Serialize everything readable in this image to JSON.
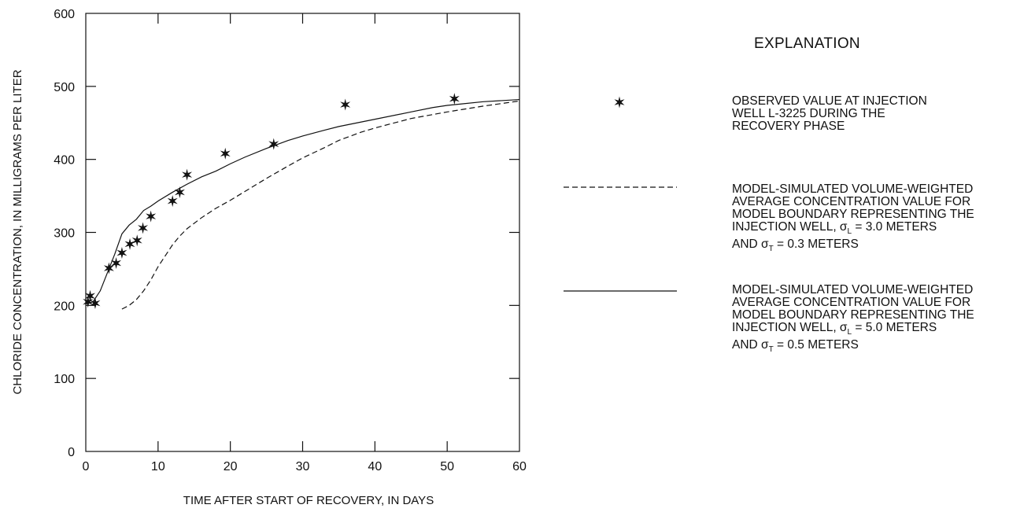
{
  "chart_data": {
    "type": "line",
    "xlabel": "TIME AFTER START OF RECOVERY, IN DAYS",
    "ylabel": "CHLORIDE CONCENTRATION, IN MILLIGRAMS PER LITER",
    "xlim": [
      0,
      60
    ],
    "ylim": [
      0,
      600
    ],
    "x_ticks": [
      "0",
      "10",
      "20",
      "30",
      "40",
      "50",
      "60"
    ],
    "y_ticks": [
      "0",
      "100",
      "200",
      "300",
      "400",
      "500",
      "600"
    ],
    "grid": false,
    "legend_position": "right",
    "legend_title": "EXPLANATION",
    "series": [
      {
        "key": "observed",
        "style": "star-markers",
        "legend_lines": [
          "OBSERVED VALUE AT INJECTION",
          "WELL L-3225 DURING THE",
          "RECOVERY PHASE"
        ],
        "points": [
          [
            0.3,
            205
          ],
          [
            0.6,
            213
          ],
          [
            1.3,
            203
          ],
          [
            3.2,
            251
          ],
          [
            4.2,
            258
          ],
          [
            5.0,
            272
          ],
          [
            6.1,
            284
          ],
          [
            7.1,
            289
          ],
          [
            7.9,
            306
          ],
          [
            9.0,
            322
          ],
          [
            12.0,
            343
          ],
          [
            13.0,
            355
          ],
          [
            14.0,
            379
          ],
          [
            19.3,
            408
          ],
          [
            26.0,
            421
          ],
          [
            35.9,
            475
          ],
          [
            51.0,
            483
          ]
        ]
      },
      {
        "key": "dashed",
        "style": "dashed",
        "legend_lines": [
          "MODEL-SIMULATED VOLUME-WEIGHTED",
          "AVERAGE CONCENTRATION VALUE FOR",
          "MODEL BOUNDARY REPRESENTING THE",
          "INJECTION WELL, σ<sub>L</sub> = 3.0 METERS",
          "AND σ<sub>T</sub> = 0.3 METERS"
        ],
        "points": [
          [
            5,
            195
          ],
          [
            6,
            200
          ],
          [
            7,
            208
          ],
          [
            8,
            220
          ],
          [
            9,
            235
          ],
          [
            10,
            253
          ],
          [
            11,
            268
          ],
          [
            12,
            283
          ],
          [
            13,
            295
          ],
          [
            14,
            305
          ],
          [
            16,
            320
          ],
          [
            18,
            333
          ],
          [
            20,
            344
          ],
          [
            22,
            356
          ],
          [
            25,
            374
          ],
          [
            28,
            391
          ],
          [
            30,
            402
          ],
          [
            33,
            416
          ],
          [
            35,
            426
          ],
          [
            38,
            437
          ],
          [
            40,
            443
          ],
          [
            45,
            456
          ],
          [
            50,
            465
          ],
          [
            55,
            473
          ],
          [
            60,
            480
          ]
        ]
      },
      {
        "key": "solid",
        "style": "solid",
        "legend_lines": [
          "MODEL-SIMULATED VOLUME-WEIGHTED",
          "AVERAGE CONCENTRATION VALUE FOR",
          "MODEL BOUNDARY REPRESENTING THE",
          "INJECTION WELL, σ<sub>L</sub> = 5.0 METERS",
          "AND σ<sub>T</sub> = 0.5 METERS"
        ],
        "points": [
          [
            0,
            202
          ],
          [
            1,
            205
          ],
          [
            2,
            220
          ],
          [
            3,
            245
          ],
          [
            4,
            270
          ],
          [
            5,
            298
          ],
          [
            6,
            310
          ],
          [
            7,
            318
          ],
          [
            8,
            330
          ],
          [
            9,
            336
          ],
          [
            10,
            343
          ],
          [
            12,
            355
          ],
          [
            14,
            366
          ],
          [
            16,
            376
          ],
          [
            18,
            384
          ],
          [
            20,
            394
          ],
          [
            22,
            403
          ],
          [
            25,
            415
          ],
          [
            28,
            426
          ],
          [
            30,
            432
          ],
          [
            33,
            440
          ],
          [
            35,
            445
          ],
          [
            40,
            455
          ],
          [
            45,
            465
          ],
          [
            48,
            471
          ],
          [
            50,
            474
          ],
          [
            52,
            476
          ],
          [
            55,
            479
          ],
          [
            60,
            482
          ]
        ]
      }
    ]
  }
}
